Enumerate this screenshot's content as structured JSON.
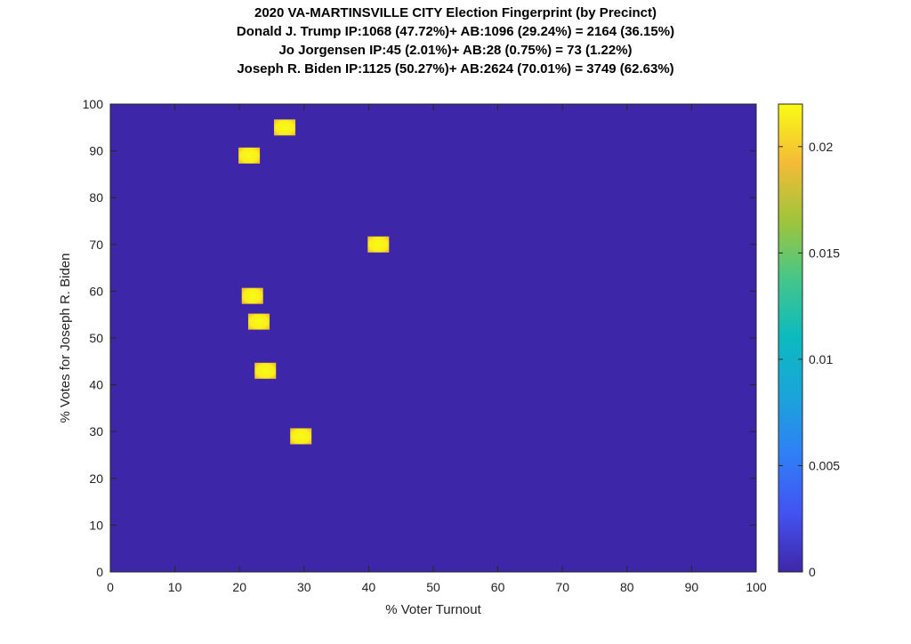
{
  "chart_data": {
    "type": "heatmap",
    "title": [
      "2020 VA-MARTINSVILLE CITY Election Fingerprint (by Precinct)",
      "Donald J. Trump IP:1068 (47.72%)+ AB:1096 (29.24%) = 2164 (36.15%)",
      "Jo Jorgensen IP:45 (2.01%)+ AB:28 (0.75%) = 73 (1.22%)",
      "Joseph R. Biden IP:1125 (50.27%)+ AB:2624 (70.01%) = 3749 (62.63%)"
    ],
    "xlabel": "% Voter Turnout",
    "ylabel": "% Votes for Joseph R. Biden",
    "xlim": [
      0,
      100
    ],
    "ylim": [
      0,
      100
    ],
    "xticks": [
      "0",
      "10",
      "20",
      "30",
      "40",
      "50",
      "60",
      "70",
      "80",
      "90",
      "100"
    ],
    "yticks": [
      "0",
      "10",
      "20",
      "30",
      "40",
      "50",
      "60",
      "70",
      "80",
      "90",
      "100"
    ],
    "colorbar": {
      "range": [
        0,
        0.022
      ],
      "ticks": [
        "0",
        "0.005",
        "0.01",
        "0.015",
        "0.02"
      ],
      "tick_values": [
        0,
        0.005,
        0.01,
        0.015,
        0.02
      ],
      "colormap": "parula"
    },
    "background_color": "#3e26a8",
    "points": [
      {
        "x": 27,
        "y": 95,
        "value": 0.0214
      },
      {
        "x": 21.5,
        "y": 89,
        "value": 0.0214
      },
      {
        "x": 41.5,
        "y": 70,
        "value": 0.0214
      },
      {
        "x": 22,
        "y": 59,
        "value": 0.0214
      },
      {
        "x": 23,
        "y": 53.5,
        "value": 0.0214
      },
      {
        "x": 24,
        "y": 43,
        "value": 0.0214
      },
      {
        "x": 29.5,
        "y": 29,
        "value": 0.0214
      }
    ]
  }
}
